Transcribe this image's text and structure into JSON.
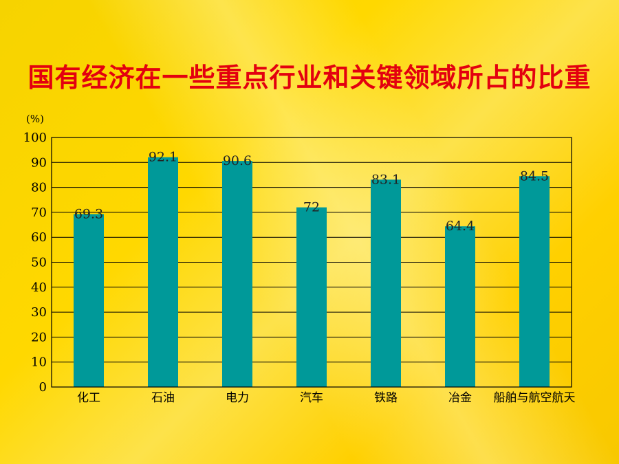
{
  "chart_data": {
    "type": "bar",
    "title": "国有经济在一些重点行业和关键领域所占的比重",
    "ylabel": "(%)",
    "ylim": [
      0,
      100
    ],
    "yticks": [
      0,
      10,
      20,
      30,
      40,
      50,
      60,
      70,
      80,
      90,
      100
    ],
    "grid": true,
    "categories": [
      "化工",
      "石油",
      "电力",
      "汽车",
      "铁路",
      "冶金",
      "船舶与航空航天"
    ],
    "values": [
      69.3,
      92.1,
      90.6,
      72,
      83.1,
      64.4,
      84.5
    ],
    "data_labels": [
      "69.3",
      "92.1",
      "90.6",
      "72",
      "83.1",
      "64.4",
      "84.5"
    ],
    "colors": {
      "bar": "#009999",
      "title": "#e3000f",
      "grid": "#000000"
    }
  }
}
